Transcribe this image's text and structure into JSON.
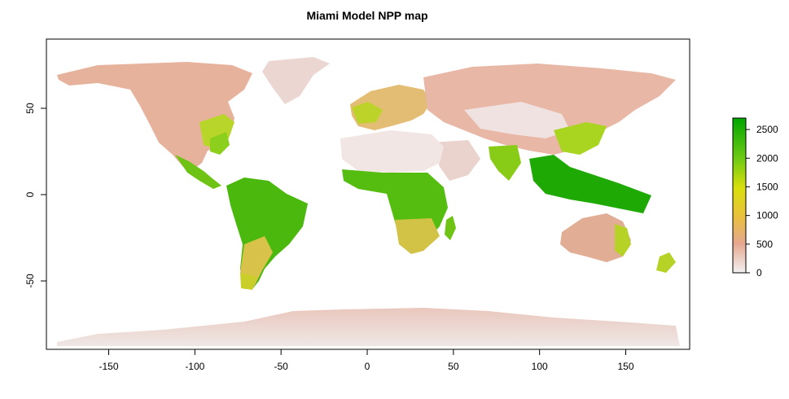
{
  "title": "Miami Model NPP map",
  "axes": {
    "x_ticks": [
      "-150",
      "-100",
      "-50",
      "0",
      "50",
      "100",
      "150"
    ],
    "y_ticks": [
      "50",
      "0",
      "-50"
    ]
  },
  "legend": {
    "ticks": [
      "0",
      "500",
      "1000",
      "1500",
      "2000",
      "2500"
    ],
    "range": [
      0,
      2700
    ],
    "colors": [
      "#f2f2f2",
      "#e6a78f",
      "#e8c23a",
      "#d9df0b",
      "#6dca13",
      "#00a600"
    ]
  },
  "map_data": {
    "type": "raster",
    "xlim": [
      -180,
      180
    ],
    "ylim": [
      -90,
      90
    ]
  }
}
